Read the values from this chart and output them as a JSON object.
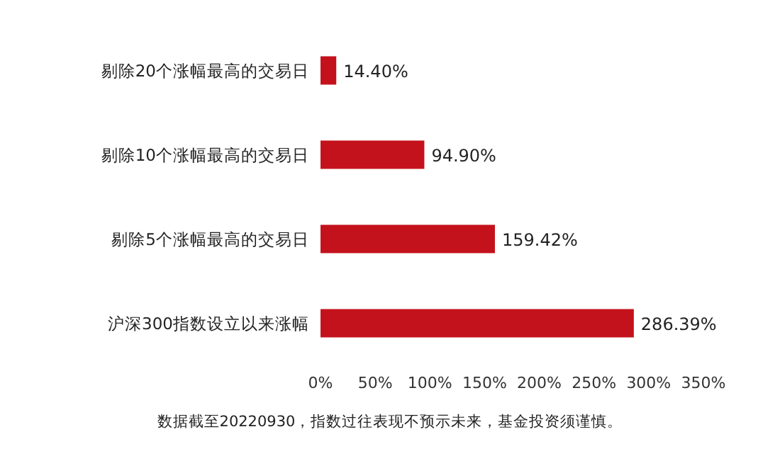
{
  "chart_data": {
    "type": "bar",
    "orientation": "horizontal",
    "categories": [
      "剔除20个涨幅最高的交易日",
      "剔除10个涨幅最高的交易日",
      "剔除5个涨幅最高的交易日",
      "沪深300指数设立以来涨幅"
    ],
    "values": [
      14.4,
      94.9,
      159.42,
      286.39
    ],
    "value_labels": [
      "14.40%",
      "94.90%",
      "159.42%",
      "286.39%"
    ],
    "color": "#c4121c",
    "xlim": [
      0,
      350
    ],
    "xticks": [
      {
        "value": 0,
        "label": "0%"
      },
      {
        "value": 50,
        "label": "50%"
      },
      {
        "value": 100,
        "label": "100%"
      },
      {
        "value": 150,
        "label": "150%"
      },
      {
        "value": 200,
        "label": "200%"
      },
      {
        "value": 250,
        "label": "250%"
      },
      {
        "value": 300,
        "label": "300%"
      },
      {
        "value": 350,
        "label": "350%"
      }
    ],
    "annotations": [
      "数据截至20220930，指数过往表现不预示未来，基金投资须谨慎。"
    ]
  }
}
